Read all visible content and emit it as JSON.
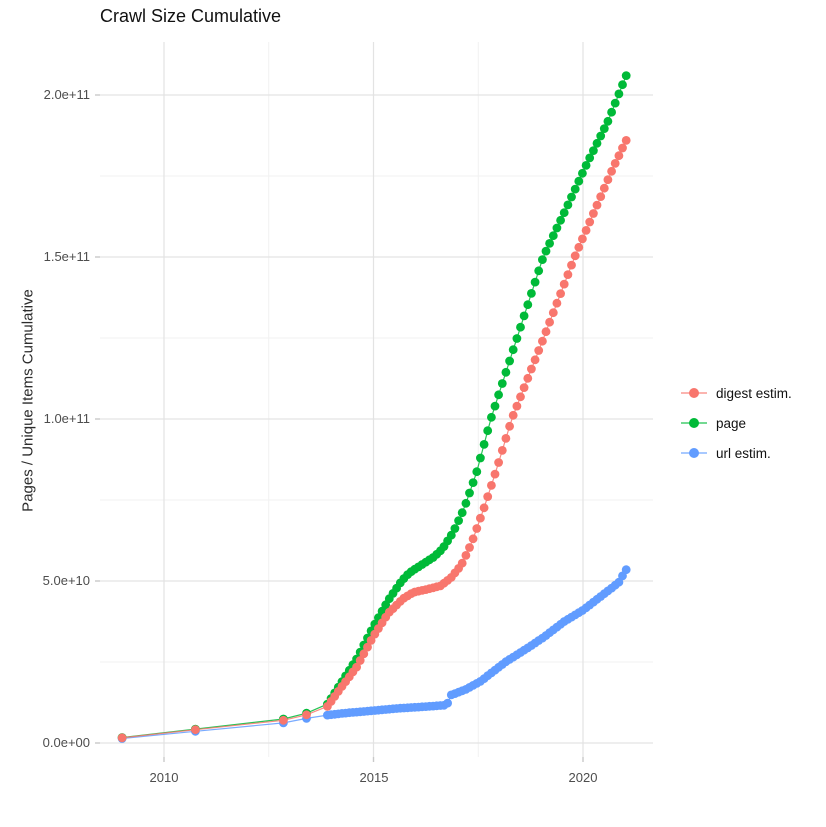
{
  "chart_data": {
    "type": "scatter",
    "title": "Crawl Size Cumulative",
    "xlabel": "",
    "ylabel": "Pages / Unique Items Cumulative",
    "legend_position": "right",
    "grid": true,
    "value_unit": "1e9 (values below are in billions; axis shows scientific notation)",
    "x_ticks": [
      {
        "v": 2010,
        "label": "2010"
      },
      {
        "v": 2015,
        "label": "2015"
      },
      {
        "v": 2020,
        "label": "2020"
      }
    ],
    "x_minor": [
      2012.5,
      2017.5
    ],
    "y_ticks": [
      {
        "v": 0,
        "label": "0.0e+00"
      },
      {
        "v": 50,
        "label": "5.0e+10"
      },
      {
        "v": 100,
        "label": "1.0e+11"
      },
      {
        "v": 150,
        "label": "1.5e+11"
      },
      {
        "v": 200,
        "label": "2.0e+11"
      }
    ],
    "y_minor": [
      25,
      75,
      125,
      175
    ],
    "xlim": [
      2008.45,
      2021.75
    ],
    "ylim_e9": [
      -9,
      217
    ],
    "series": [
      {
        "name": "url estim.",
        "color": "#619CFF",
        "sparse_points": [
          [
            2009.0,
            1.4
          ],
          [
            2010.75,
            3.6
          ],
          [
            2012.85,
            6.2
          ],
          [
            2013.4,
            7.6
          ]
        ],
        "anchors_e9": [
          [
            2013.9,
            8.6
          ],
          [
            2014.3,
            9.2
          ],
          [
            2015.0,
            10.0
          ],
          [
            2015.6,
            10.7
          ],
          [
            2016.2,
            11.2
          ],
          [
            2016.75,
            11.7
          ],
          [
            2016.85,
            14.8
          ],
          [
            2017.2,
            16.5
          ],
          [
            2017.55,
            19.0
          ],
          [
            2018.15,
            25
          ],
          [
            2018.7,
            29.5
          ],
          [
            2019.1,
            33
          ],
          [
            2019.55,
            37.5
          ],
          [
            2020.0,
            41
          ],
          [
            2020.45,
            45.5
          ],
          [
            2020.85,
            49.5
          ],
          [
            2021.03,
            53.5
          ]
        ],
        "n_dense": 82
      },
      {
        "name": "page",
        "color": "#00BA38",
        "sparse_points": [
          [
            2009.0,
            1.7
          ],
          [
            2010.75,
            4.3
          ],
          [
            2012.85,
            7.4
          ],
          [
            2013.4,
            9.2
          ]
        ],
        "anchors_e9": [
          [
            2013.9,
            12
          ],
          [
            2014.25,
            19
          ],
          [
            2014.6,
            26
          ],
          [
            2015.0,
            36
          ],
          [
            2015.35,
            44
          ],
          [
            2015.67,
            50
          ],
          [
            2015.85,
            52.5
          ],
          [
            2016.15,
            55
          ],
          [
            2016.45,
            57.5
          ],
          [
            2016.65,
            60
          ],
          [
            2016.9,
            65
          ],
          [
            2017.15,
            72
          ],
          [
            2017.45,
            83
          ],
          [
            2017.8,
            100
          ],
          [
            2018.4,
            124
          ],
          [
            2019.05,
            150
          ],
          [
            2019.6,
            165
          ],
          [
            2020.1,
            179
          ],
          [
            2020.6,
            192
          ],
          [
            2021.03,
            206
          ]
        ],
        "n_dense": 82
      },
      {
        "name": "digest estim.",
        "color": "#F8766D",
        "sparse_points": [
          [
            2009.0,
            1.6
          ],
          [
            2010.75,
            4.1
          ],
          [
            2012.85,
            7.0
          ],
          [
            2013.4,
            8.7
          ]
        ],
        "anchors_e9": [
          [
            2013.9,
            11.3
          ],
          [
            2014.25,
            17.5
          ],
          [
            2014.6,
            23.5
          ],
          [
            2015.0,
            33
          ],
          [
            2015.35,
            40
          ],
          [
            2015.7,
            44.5
          ],
          [
            2015.95,
            46.5
          ],
          [
            2016.3,
            47.5
          ],
          [
            2016.6,
            48.5
          ],
          [
            2016.85,
            51
          ],
          [
            2017.1,
            55
          ],
          [
            2017.35,
            62
          ],
          [
            2017.65,
            73
          ],
          [
            2017.95,
            85
          ],
          [
            2018.3,
            100
          ],
          [
            2019.0,
            123
          ],
          [
            2019.8,
            150
          ],
          [
            2020.3,
            165
          ],
          [
            2020.7,
            177
          ],
          [
            2021.03,
            186
          ]
        ],
        "n_dense": 82
      }
    ],
    "legend_order": [
      "digest estim.",
      "page",
      "url estim."
    ],
    "style": {
      "grid_major_color": "#e3e3e3",
      "grid_minor_color": "#f1f1f1",
      "tick_mark_color": "#c9c9c9",
      "axis_text_color": "#4d4d4d",
      "point_radius": 4.4
    }
  }
}
